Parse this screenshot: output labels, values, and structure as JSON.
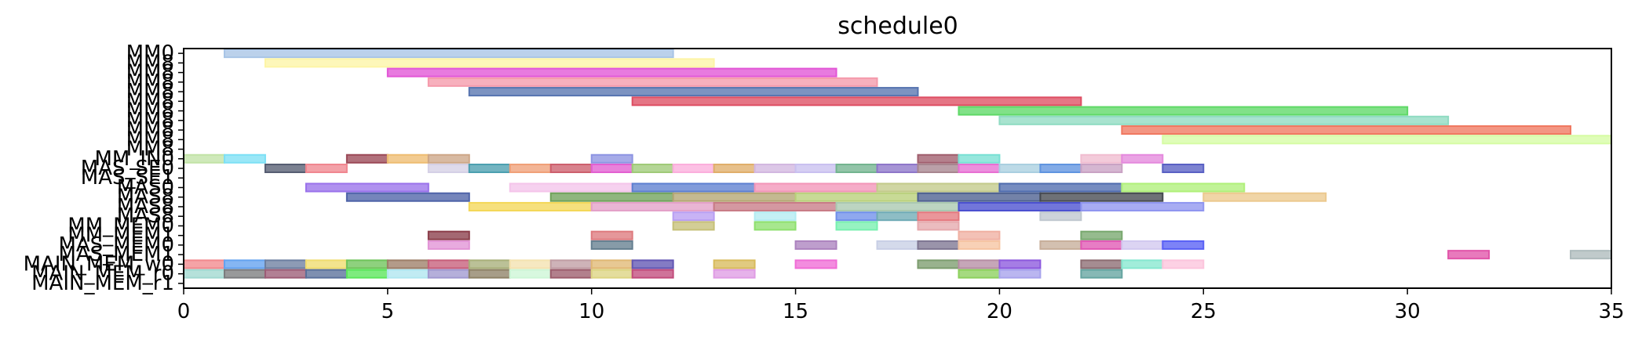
{
  "chart_data": {
    "type": "gantt",
    "title": "schedule0",
    "xlabel": "",
    "ylabel": "",
    "xlim": [
      0,
      35
    ],
    "x_ticks": [
      0,
      5,
      10,
      15,
      20,
      25,
      30,
      35
    ],
    "grid": false,
    "y_labels": [
      "MM0",
      "MM8",
      "MM8",
      "MM8",
      "MM8",
      "MM8",
      "MM8",
      "MM8",
      "MM8",
      "MM8",
      "MM8",
      "MM_IN0",
      "MAS_SE0",
      "MAS_SE1",
      "MAS0",
      "MAS8",
      "MAS8",
      "MAS8",
      "MM_MEM0",
      "MM_MEM1",
      "MAS_MEM0",
      "MAS_MEM1",
      "MAIN_MEM_w0",
      "MAIN_MEM_r0",
      "MAIN_MEM_r1"
    ],
    "bars": [
      {
        "row": 0,
        "start": 1,
        "end": 12,
        "color": "#a8c4e6"
      },
      {
        "row": 1,
        "start": 2,
        "end": 13,
        "color": "#fdf5a6"
      },
      {
        "row": 2,
        "start": 5,
        "end": 16,
        "color": "#e255d6"
      },
      {
        "row": 3,
        "start": 6,
        "end": 17,
        "color": "#f59aab"
      },
      {
        "row": 4,
        "start": 7,
        "end": 18,
        "color": "#5774b0"
      },
      {
        "row": 5,
        "start": 11,
        "end": 22,
        "color": "#de4e63"
      },
      {
        "row": 6,
        "start": 19,
        "end": 30,
        "color": "#5ed866"
      },
      {
        "row": 7,
        "start": 20,
        "end": 31,
        "color": "#8fdbc2"
      },
      {
        "row": 8,
        "start": 23,
        "end": 34,
        "color": "#f07860"
      },
      {
        "row": 9,
        "start": 24,
        "end": 35,
        "color": "#d6fca4"
      },
      {
        "row": 11,
        "start": 0,
        "end": 1,
        "color": "#c2e3a6"
      },
      {
        "row": 11,
        "start": 1,
        "end": 2,
        "color": "#7de0f5"
      },
      {
        "row": 11,
        "start": 4,
        "end": 5,
        "color": "#9b4957"
      },
      {
        "row": 11,
        "start": 5,
        "end": 6,
        "color": "#eebd72"
      },
      {
        "row": 11,
        "start": 6,
        "end": 7,
        "color": "#cda788"
      },
      {
        "row": 11,
        "start": 10,
        "end": 11,
        "color": "#8d94e2"
      },
      {
        "row": 11,
        "start": 18,
        "end": 19,
        "color": "#a05e6d"
      },
      {
        "row": 11,
        "start": 19,
        "end": 20,
        "color": "#78e0d4"
      },
      {
        "row": 11,
        "start": 22,
        "end": 23,
        "color": "#f0bcd0"
      },
      {
        "row": 11,
        "start": 23,
        "end": 24,
        "color": "#e489dd"
      },
      {
        "row": 12,
        "start": 2,
        "end": 3,
        "color": "#565d72"
      },
      {
        "row": 12,
        "start": 3,
        "end": 4,
        "color": "#f0868f"
      },
      {
        "row": 12,
        "start": 6,
        "end": 7,
        "color": "#d5d0e6"
      },
      {
        "row": 12,
        "start": 7,
        "end": 8,
        "color": "#4b9fb0"
      },
      {
        "row": 12,
        "start": 8,
        "end": 9,
        "color": "#f0a078"
      },
      {
        "row": 12,
        "start": 9,
        "end": 10,
        "color": "#cd5f6d"
      },
      {
        "row": 12,
        "start": 10,
        "end": 11,
        "color": "#e25fd1"
      },
      {
        "row": 12,
        "start": 11,
        "end": 12,
        "color": "#9fca78"
      },
      {
        "row": 12,
        "start": 12,
        "end": 13,
        "color": "#fbaedc"
      },
      {
        "row": 12,
        "start": 13,
        "end": 14,
        "color": "#e0ae6a"
      },
      {
        "row": 12,
        "start": 14,
        "end": 15,
        "color": "#d2b7e0"
      },
      {
        "row": 12,
        "start": 15,
        "end": 16,
        "color": "#c9c0f0"
      },
      {
        "row": 12,
        "start": 16,
        "end": 17,
        "color": "#73b48f"
      },
      {
        "row": 12,
        "start": 17,
        "end": 18,
        "color": "#8d76c9"
      },
      {
        "row": 12,
        "start": 18,
        "end": 19,
        "color": "#a7858f"
      },
      {
        "row": 12,
        "start": 19,
        "end": 20,
        "color": "#e76fd3"
      },
      {
        "row": 12,
        "start": 20,
        "end": 21,
        "color": "#a9cfe0"
      },
      {
        "row": 12,
        "start": 21,
        "end": 22,
        "color": "#5f94e0"
      },
      {
        "row": 12,
        "start": 22,
        "end": 23,
        "color": "#c9a2c4"
      },
      {
        "row": 12,
        "start": 24,
        "end": 25,
        "color": "#5960c4"
      },
      {
        "row": 14,
        "start": 3,
        "end": 6,
        "color": "#9a72eb"
      },
      {
        "row": 14,
        "start": 8,
        "end": 11,
        "color": "#f4c4ea"
      },
      {
        "row": 14,
        "start": 11,
        "end": 14,
        "color": "#5d7fd0"
      },
      {
        "row": 14,
        "start": 14,
        "end": 17,
        "color": "#f295b8"
      },
      {
        "row": 14,
        "start": 17,
        "end": 20,
        "color": "#c3ca8a"
      },
      {
        "row": 14,
        "start": 20,
        "end": 23,
        "color": "#4f6cae"
      },
      {
        "row": 14,
        "start": 23,
        "end": 26,
        "color": "#b0f07a"
      },
      {
        "row": 15,
        "start": 4,
        "end": 7,
        "color": "#4e63a8"
      },
      {
        "row": 15,
        "start": 9,
        "end": 12,
        "color": "#6fa25a"
      },
      {
        "row": 15,
        "start": 12,
        "end": 15,
        "color": "#b3a572"
      },
      {
        "row": 15,
        "start": 15,
        "end": 18,
        "color": "#b8d079"
      },
      {
        "row": 15,
        "start": 18,
        "end": 21,
        "color": "#4c5f8f"
      },
      {
        "row": 15,
        "start": 21,
        "end": 24,
        "color": "#45494f"
      },
      {
        "row": 15,
        "start": 25,
        "end": 28,
        "color": "#ecc98e"
      },
      {
        "row": 16,
        "start": 7,
        "end": 10,
        "color": "#f4d758"
      },
      {
        "row": 16,
        "start": 10,
        "end": 13,
        "color": "#e3a0c8"
      },
      {
        "row": 16,
        "start": 13,
        "end": 16,
        "color": "#c87b86"
      },
      {
        "row": 16,
        "start": 16,
        "end": 19,
        "color": "#a9c8b0"
      },
      {
        "row": 16,
        "start": 19,
        "end": 22,
        "color": "#4a4fd0"
      },
      {
        "row": 16,
        "start": 22,
        "end": 25,
        "color": "#8f95f0"
      },
      {
        "row": 17,
        "start": 12,
        "end": 13,
        "color": "#b89ef2"
      },
      {
        "row": 17,
        "start": 14,
        "end": 15,
        "color": "#b3ecf2"
      },
      {
        "row": 17,
        "start": 16,
        "end": 17,
        "color": "#6f8fea"
      },
      {
        "row": 17,
        "start": 17,
        "end": 18,
        "color": "#6eaab5"
      },
      {
        "row": 17,
        "start": 18,
        "end": 19,
        "color": "#e4787e"
      },
      {
        "row": 17,
        "start": 21,
        "end": 22,
        "color": "#bfc7cf"
      },
      {
        "row": 18,
        "start": 12,
        "end": 13,
        "color": "#c6c078"
      },
      {
        "row": 18,
        "start": 14,
        "end": 15,
        "color": "#8ee06e"
      },
      {
        "row": 18,
        "start": 16,
        "end": 17,
        "color": "#78f0b0"
      },
      {
        "row": 18,
        "start": 18,
        "end": 19,
        "color": "#e6a9ad"
      },
      {
        "row": 19,
        "start": 6,
        "end": 7,
        "color": "#8b3e4a"
      },
      {
        "row": 19,
        "start": 10,
        "end": 11,
        "color": "#de7a7e"
      },
      {
        "row": 19,
        "start": 19,
        "end": 20,
        "color": "#f0b0a2"
      },
      {
        "row": 19,
        "start": 22,
        "end": 23,
        "color": "#78a86e"
      },
      {
        "row": 20,
        "start": 6,
        "end": 7,
        "color": "#e294d6"
      },
      {
        "row": 20,
        "start": 10,
        "end": 11,
        "color": "#657f90"
      },
      {
        "row": 20,
        "start": 15,
        "end": 16,
        "color": "#ac83bf"
      },
      {
        "row": 20,
        "start": 17,
        "end": 18,
        "color": "#c8cfe6"
      },
      {
        "row": 20,
        "start": 18,
        "end": 19,
        "color": "#7e7692"
      },
      {
        "row": 20,
        "start": 19,
        "end": 20,
        "color": "#f6c4a2"
      },
      {
        "row": 20,
        "start": 21,
        "end": 22,
        "color": "#c7ae9a"
      },
      {
        "row": 20,
        "start": 22,
        "end": 23,
        "color": "#e058b4"
      },
      {
        "row": 20,
        "start": 23,
        "end": 24,
        "color": "#d2c8f0"
      },
      {
        "row": 20,
        "start": 24,
        "end": 25,
        "color": "#5960f5"
      },
      {
        "row": 21,
        "start": 31,
        "end": 32,
        "color": "#e154a9"
      },
      {
        "row": 21,
        "start": 34,
        "end": 35,
        "color": "#aebbbd"
      },
      {
        "row": 22,
        "start": 0,
        "end": 1,
        "color": "#f2898d"
      },
      {
        "row": 22,
        "start": 1,
        "end": 2,
        "color": "#63a2f0"
      },
      {
        "row": 22,
        "start": 2,
        "end": 3,
        "color": "#6d7fa0"
      },
      {
        "row": 22,
        "start": 3,
        "end": 4,
        "color": "#f0dc6e"
      },
      {
        "row": 22,
        "start": 4,
        "end": 5,
        "color": "#6ec45a"
      },
      {
        "row": 22,
        "start": 5,
        "end": 6,
        "color": "#9d7f68"
      },
      {
        "row": 22,
        "start": 6,
        "end": 7,
        "color": "#c75e7a"
      },
      {
        "row": 22,
        "start": 7,
        "end": 8,
        "color": "#a8b07a"
      },
      {
        "row": 22,
        "start": 8,
        "end": 9,
        "color": "#f4e2b0"
      },
      {
        "row": 22,
        "start": 9,
        "end": 10,
        "color": "#c09da4"
      },
      {
        "row": 22,
        "start": 10,
        "end": 11,
        "color": "#e0b874"
      },
      {
        "row": 22,
        "start": 11,
        "end": 12,
        "color": "#6256b4"
      },
      {
        "row": 22,
        "start": 13,
        "end": 14,
        "color": "#d8bb5c"
      },
      {
        "row": 22,
        "start": 15,
        "end": 16,
        "color": "#f06cd6"
      },
      {
        "row": 22,
        "start": 18,
        "end": 19,
        "color": "#7c9c6e"
      },
      {
        "row": 22,
        "start": 19,
        "end": 20,
        "color": "#b68da4"
      },
      {
        "row": 22,
        "start": 20,
        "end": 21,
        "color": "#8c58de"
      },
      {
        "row": 22,
        "start": 22,
        "end": 23,
        "color": "#8c6c72"
      },
      {
        "row": 22,
        "start": 23,
        "end": 24,
        "color": "#86e8d0"
      },
      {
        "row": 22,
        "start": 24,
        "end": 25,
        "color": "#fcc4dc"
      },
      {
        "row": 23,
        "start": 0,
        "end": 1,
        "color": "#a0d8d0"
      },
      {
        "row": 23,
        "start": 1,
        "end": 2,
        "color": "#7b7c7e"
      },
      {
        "row": 23,
        "start": 2,
        "end": 3,
        "color": "#9c5c76"
      },
      {
        "row": 23,
        "start": 3,
        "end": 4,
        "color": "#5a709a"
      },
      {
        "row": 23,
        "start": 4,
        "end": 5,
        "color": "#5ae65a"
      },
      {
        "row": 23,
        "start": 5,
        "end": 6,
        "color": "#b0e6f0"
      },
      {
        "row": 23,
        "start": 6,
        "end": 7,
        "color": "#a098cf"
      },
      {
        "row": 23,
        "start": 7,
        "end": 8,
        "color": "#8e8266"
      },
      {
        "row": 23,
        "start": 8,
        "end": 9,
        "color": "#cdf6d6"
      },
      {
        "row": 23,
        "start": 9,
        "end": 10,
        "color": "#9c5c6c"
      },
      {
        "row": 23,
        "start": 10,
        "end": 11,
        "color": "#dcd482"
      },
      {
        "row": 23,
        "start": 11,
        "end": 12,
        "color": "#c24c7c"
      },
      {
        "row": 23,
        "start": 13,
        "end": 14,
        "color": "#df9ce4"
      },
      {
        "row": 23,
        "start": 19,
        "end": 20,
        "color": "#8cd05c"
      },
      {
        "row": 23,
        "start": 20,
        "end": 21,
        "color": "#a7a2ec"
      },
      {
        "row": 23,
        "start": 22,
        "end": 23,
        "color": "#64a4a0"
      }
    ]
  }
}
